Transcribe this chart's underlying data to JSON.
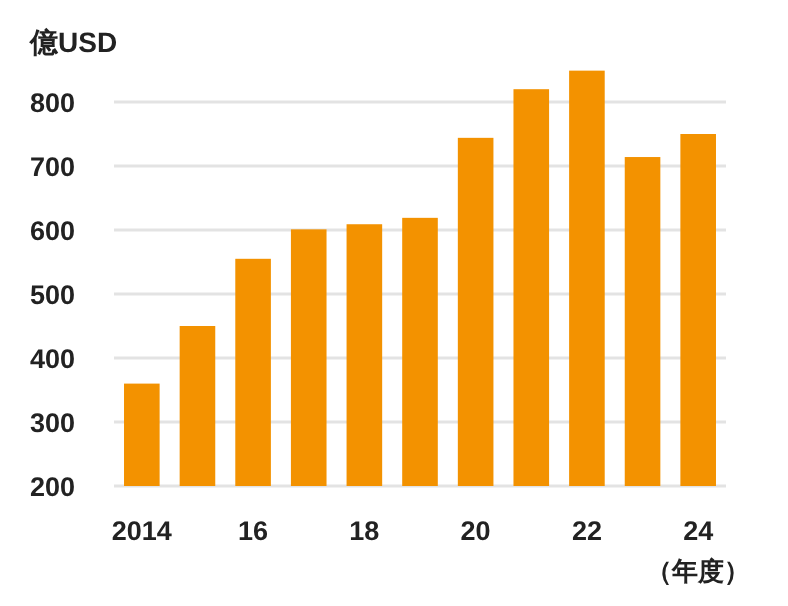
{
  "chart_data": {
    "type": "bar",
    "ylabel": "億USD",
    "xlabel": "（年度）",
    "categories": [
      "2014",
      null,
      "16",
      null,
      "18",
      null,
      "20",
      null,
      "22",
      null,
      "24"
    ],
    "values": [
      360,
      450,
      555,
      601,
      609,
      619,
      744,
      820,
      849,
      714,
      750
    ],
    "color": "#f39200",
    "ylim": [
      200,
      850
    ],
    "yticks": [
      200,
      300,
      400,
      500,
      600,
      700,
      800
    ],
    "grid": "y"
  }
}
